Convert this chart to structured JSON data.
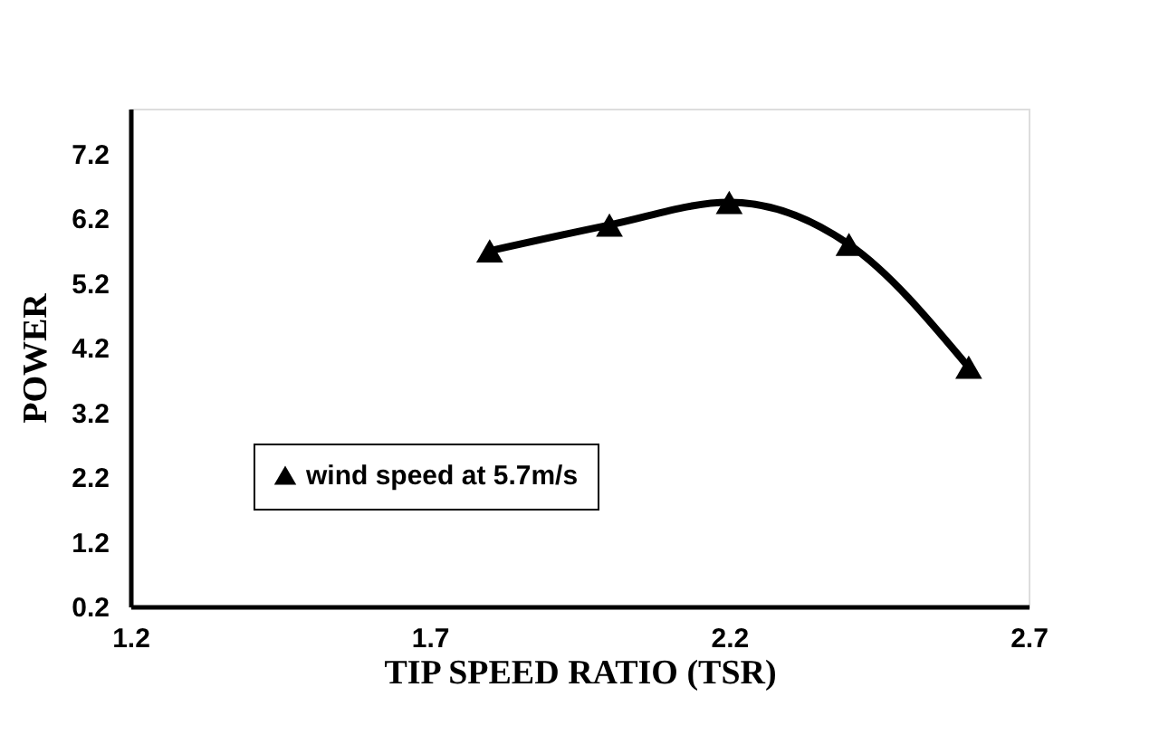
{
  "chart_data": {
    "type": "line",
    "xlabel": "TIP SPEED RATIO (TSR)",
    "ylabel": "POWER",
    "x": [
      1.8,
      2.0,
      2.2,
      2.4,
      2.6
    ],
    "series": [
      {
        "name": "wind speed at 5.7m/s",
        "color": "#000000",
        "values": [
          5.7,
          6.1,
          6.45,
          5.8,
          3.9
        ]
      }
    ],
    "xlim": [
      1.2,
      2.7
    ],
    "xticks": [
      1.2,
      1.7,
      2.2,
      2.7
    ],
    "ylim": [
      0.2,
      7.9
    ],
    "yticks": [
      0.2,
      1.2,
      2.2,
      3.2,
      4.2,
      5.2,
      6.2,
      7.2
    ],
    "grid": false,
    "legend": "bottom left",
    "marker": "triangle",
    "line_style": "solid"
  }
}
